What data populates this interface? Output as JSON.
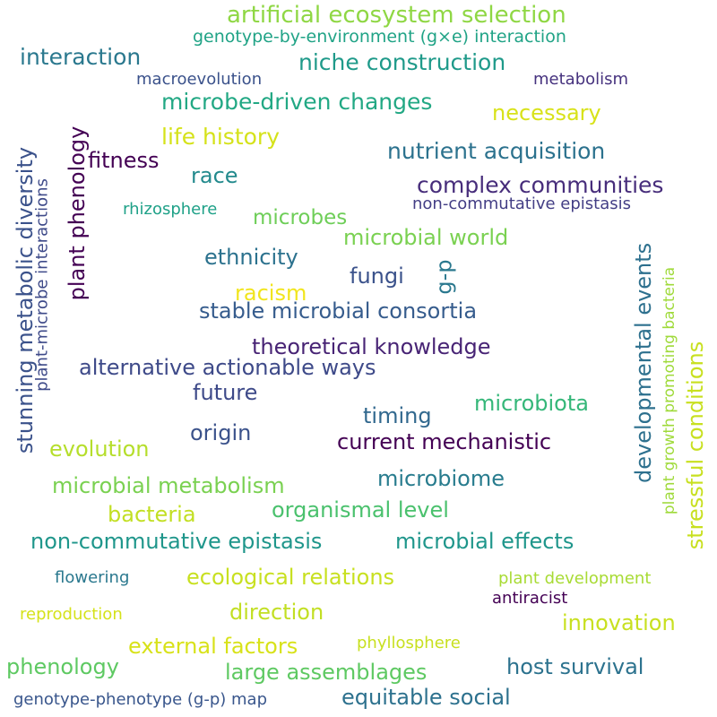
{
  "words": [
    {
      "text": "artificial ecosystem selection",
      "color": "#8fd744"
    },
    {
      "text": "genotype-by-environment (g×e) interaction",
      "color": "#20a386"
    },
    {
      "text": "interaction",
      "color": "#2a788e"
    },
    {
      "text": "niche construction",
      "color": "#1f9a8a"
    },
    {
      "text": "macroevolution",
      "color": "#3b528b"
    },
    {
      "text": "metabolism",
      "color": "#46327e"
    },
    {
      "text": "microbe-driven changes",
      "color": "#22a884"
    },
    {
      "text": "necessary",
      "color": "#d8e219"
    },
    {
      "text": "life history",
      "color": "#d5e21a"
    },
    {
      "text": "fitness",
      "color": "#440154"
    },
    {
      "text": "nutrient acquisition",
      "color": "#2c728e"
    },
    {
      "text": "race",
      "color": "#238a8d"
    },
    {
      "text": "complex communities",
      "color": "#472d7b"
    },
    {
      "text": "rhizosphere",
      "color": "#1fa188"
    },
    {
      "text": "microbes",
      "color": "#6ece58"
    },
    {
      "text": "non-commutative epistasis",
      "color": "#433e85"
    },
    {
      "text": "microbial world",
      "color": "#7ad151"
    },
    {
      "text": "ethnicity",
      "color": "#2c728e"
    },
    {
      "text": "fungi",
      "color": "#3b528b"
    },
    {
      "text": "racism",
      "color": "#f1e51d"
    },
    {
      "text": "stable microbial consortia",
      "color": "#365c8d"
    },
    {
      "text": "theoretical knowledge",
      "color": "#482475"
    },
    {
      "text": "alternative actionable ways",
      "color": "#3e4a89"
    },
    {
      "text": "future",
      "color": "#3e4a89"
    },
    {
      "text": "timing",
      "color": "#31688e"
    },
    {
      "text": "microbiota",
      "color": "#35b779"
    },
    {
      "text": "origin",
      "color": "#3b528b"
    },
    {
      "text": "current mechanistic",
      "color": "#440154"
    },
    {
      "text": "evolution",
      "color": "#b5de2b"
    },
    {
      "text": "microbiome",
      "color": "#287c8e"
    },
    {
      "text": "microbial metabolism",
      "color": "#7ad151"
    },
    {
      "text": "bacteria",
      "color": "#c2df23"
    },
    {
      "text": "organismal level",
      "color": "#4ac16d"
    },
    {
      "text": "non-commutative epistasis",
      "color": "#1f968b"
    },
    {
      "text": "microbial effects",
      "color": "#1f968b"
    },
    {
      "text": "flowering",
      "color": "#2a788e"
    },
    {
      "text": "ecological relations",
      "color": "#c8e020"
    },
    {
      "text": "plant development",
      "color": "#a8db34"
    },
    {
      "text": "antiracist",
      "color": "#440154"
    },
    {
      "text": "reproduction",
      "color": "#d5e21a"
    },
    {
      "text": "direction",
      "color": "#c2df23"
    },
    {
      "text": "innovation",
      "color": "#c8e020"
    },
    {
      "text": "external factors",
      "color": "#d8e219"
    },
    {
      "text": "phyllosphere",
      "color": "#c8e020"
    },
    {
      "text": "phenology",
      "color": "#5ec962"
    },
    {
      "text": "large assemblages",
      "color": "#5ec962"
    },
    {
      "text": "host survival",
      "color": "#2c728e"
    },
    {
      "text": "genotype-phenotype (g-p) map",
      "color": "#39568c"
    },
    {
      "text": "equitable social",
      "color": "#2d718e"
    },
    {
      "text": "stunning metabolic diversity",
      "color": "#3b528b"
    },
    {
      "text": "plant-microbe interactions",
      "color": "#3e4a89"
    },
    {
      "text": "plant phenology",
      "color": "#440154"
    },
    {
      "text": "g-p",
      "color": "#2a788e"
    },
    {
      "text": "developmental events",
      "color": "#2d708e"
    },
    {
      "text": "plant growth promoting bacteria",
      "color": "#9fda3a"
    },
    {
      "text": "stressful conditions",
      "color": "#c8e020"
    }
  ]
}
